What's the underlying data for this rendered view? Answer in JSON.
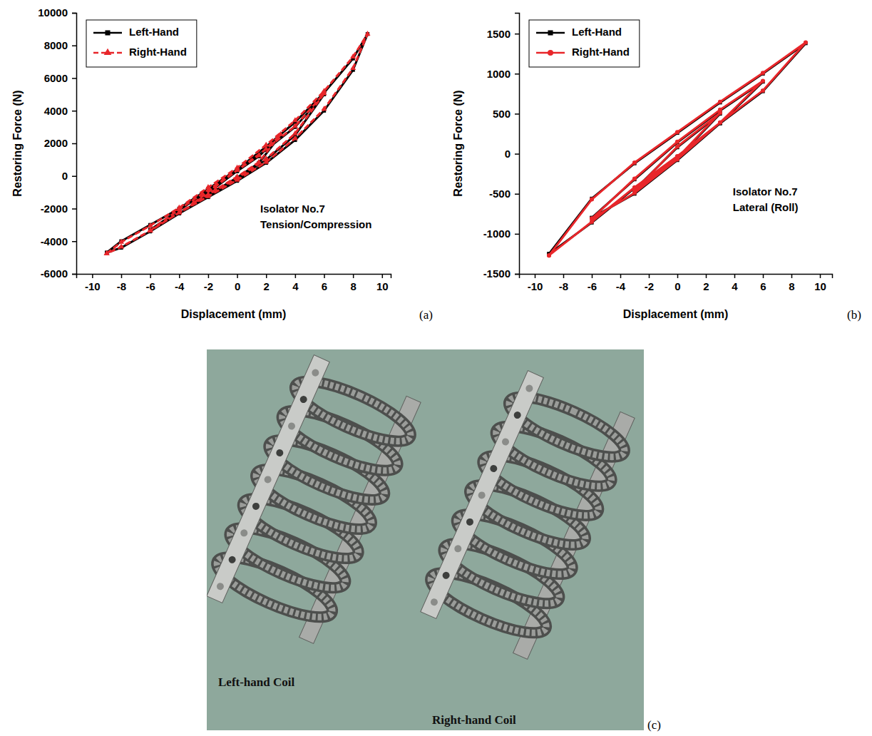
{
  "chart_data": [
    {
      "type": "line",
      "panel": "(a)",
      "xlabel": "Displacement (mm)",
      "ylabel": "Restoring Force (N)",
      "annotations": [
        "Isolator No.7",
        "Tension/Compression"
      ],
      "xlim": [
        -11.1,
        10.6
      ],
      "xticks": [
        -10,
        -8,
        -6,
        -4,
        -2,
        0,
        2,
        4,
        6,
        8,
        10
      ],
      "ylim": [
        -6000,
        10000
      ],
      "yticks": [
        -6000,
        -4000,
        -2000,
        0,
        2000,
        4000,
        6000,
        8000,
        10000
      ],
      "legend": "upper left",
      "series": [
        {
          "name": "Left-Hand",
          "color": "#000000",
          "marker": "square",
          "line_style": "solid",
          "x": [
            -9,
            -8,
            -6,
            -4,
            -2,
            0,
            2,
            4,
            6,
            8,
            9,
            8,
            6,
            4,
            2,
            0,
            -2,
            -4,
            -6,
            -8,
            -9,
            null,
            -6,
            -4,
            -2,
            0,
            2,
            4,
            6,
            4,
            2,
            0,
            -2,
            -4,
            -6,
            null,
            -3,
            -1.5,
            0,
            1.5,
            3,
            1.5,
            0,
            -1.5,
            -3
          ],
          "values": [
            -4700,
            -4000,
            -3000,
            -2000,
            -800,
            400,
            1800,
            3300,
            5100,
            7200,
            8700,
            6500,
            4000,
            2200,
            800,
            -300,
            -1300,
            -2300,
            -3400,
            -4400,
            -4700,
            null,
            -3300,
            -2100,
            -900,
            300,
            1600,
            3000,
            5000,
            2500,
            1000,
            -200,
            -1200,
            -2300,
            -3300,
            null,
            -1600,
            -700,
            300,
            1200,
            2500,
            800,
            -100,
            -900,
            -1600
          ]
        },
        {
          "name": "Right-Hand",
          "color": "#e8262a",
          "marker": "triangle",
          "line_style": "dashed",
          "x": [
            -9,
            -8,
            -6,
            -4,
            -2,
            0,
            2,
            4,
            6,
            8,
            9,
            8,
            6,
            4,
            2,
            0,
            -2,
            -4,
            -6,
            -8,
            -9,
            null,
            -6,
            -4,
            -2,
            0,
            2,
            4,
            6,
            4,
            2,
            0,
            -2,
            -4,
            -6,
            null,
            -3,
            -1.5,
            0,
            1.5,
            3,
            1.5,
            0,
            -1.5,
            -3
          ],
          "values": [
            -4750,
            -4050,
            -3050,
            -1950,
            -700,
            500,
            1900,
            3400,
            5200,
            7300,
            8700,
            6600,
            4100,
            2300,
            850,
            -250,
            -1250,
            -2250,
            -3350,
            -4350,
            -4750,
            null,
            -3350,
            -2050,
            -850,
            350,
            1650,
            3050,
            5050,
            2600,
            1050,
            -150,
            -1150,
            -2250,
            -3350,
            null,
            -1650,
            -650,
            350,
            1250,
            2550,
            850,
            -50,
            -850,
            -1650
          ]
        }
      ]
    },
    {
      "type": "line",
      "panel": "(b)",
      "xlabel": "Displacement (mm)",
      "ylabel": "Restoring Force (N)",
      "annotations": [
        "Isolator No.7",
        "Lateral (Roll)"
      ],
      "xlim": [
        -11.1,
        10.85
      ],
      "xticks": [
        -10,
        -8,
        -6,
        -4,
        -2,
        0,
        2,
        4,
        6,
        8,
        10
      ],
      "ylim": [
        -1500,
        1760
      ],
      "yticks": [
        -1500,
        -1000,
        -500,
        0,
        500,
        1000,
        1500
      ],
      "legend": "upper left",
      "series": [
        {
          "name": "Left-Hand",
          "color": "#000000",
          "marker": "square",
          "line_style": "solid",
          "x": [
            -9,
            -6,
            -3,
            0,
            3,
            6,
            9,
            6,
            3,
            0,
            -3,
            -6,
            -9,
            null,
            -6,
            -3,
            0,
            3,
            6,
            3,
            0,
            -3,
            -6,
            null,
            -3,
            0,
            3,
            0,
            -3
          ],
          "values": [
            -1250,
            -560,
            -120,
            260,
            640,
            1000,
            1380,
            780,
            380,
            -40,
            -430,
            -860,
            -1250,
            null,
            -800,
            -320,
            140,
            540,
            900,
            380,
            -80,
            -500,
            -800,
            null,
            -450,
            80,
            500,
            -60,
            -450
          ]
        },
        {
          "name": "Right-Hand",
          "color": "#e8262a",
          "marker": "circle",
          "line_style": "solid",
          "x": [
            -9,
            -6,
            -3,
            0,
            3,
            6,
            9,
            6,
            3,
            0,
            -3,
            -6,
            -9,
            null,
            -6,
            -3,
            0,
            3,
            6,
            3,
            0,
            -3,
            -6,
            null,
            -3,
            0,
            3,
            0,
            -3
          ],
          "values": [
            -1270,
            -570,
            -110,
            270,
            650,
            1010,
            1390,
            790,
            390,
            -30,
            -420,
            -850,
            -1270,
            null,
            -810,
            -310,
            150,
            550,
            910,
            390,
            -70,
            -490,
            -810,
            null,
            -460,
            90,
            510,
            -50,
            -460
          ]
        }
      ]
    }
  ],
  "photo": {
    "panel": "(c)",
    "labels": [
      "Left-hand Coil",
      "Right-hand Coil"
    ]
  }
}
